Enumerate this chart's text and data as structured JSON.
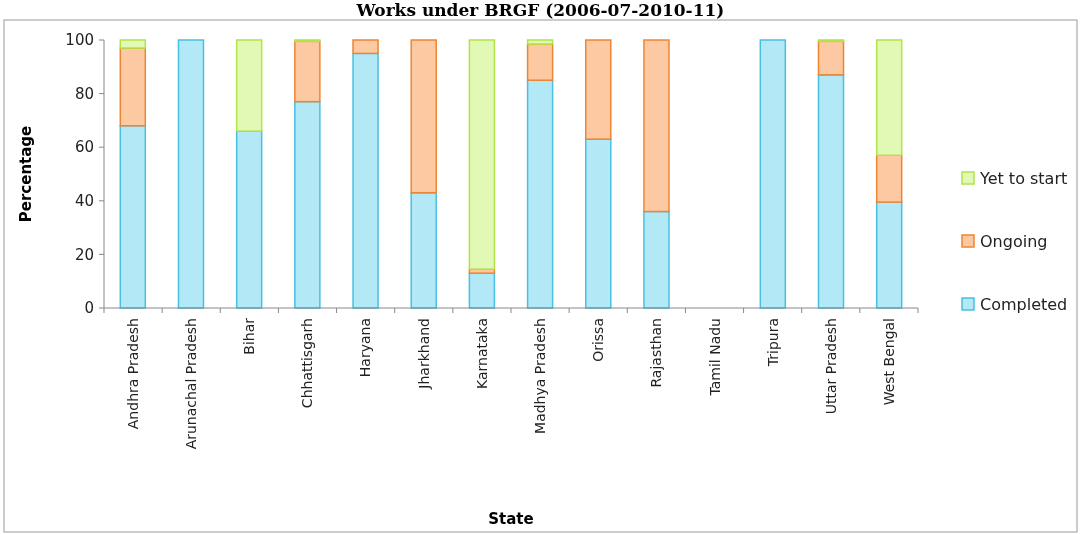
{
  "chart_data": {
    "type": "bar",
    "stacked": true,
    "title": "Works under BRGF (2006-07-2010-11)",
    "xlabel": "State",
    "ylabel": "Percentage",
    "categories": [
      "Andhra Pradesh",
      "Arunachal Pradesh",
      "Bihar",
      "Chhattisgarh",
      "Haryana",
      "Jharkhand",
      "Karnataka",
      "Madhya Pradesh",
      "Orissa",
      "Rajasthan",
      "Tamil Nadu",
      "Tripura",
      "Uttar Pradesh",
      "West Bengal"
    ],
    "series": [
      {
        "name": "Completed",
        "color": "#b3e8f7",
        "values": [
          68,
          100,
          66,
          77,
          95,
          43,
          13,
          85,
          63,
          36,
          null,
          100,
          87,
          39.5
        ]
      },
      {
        "name": "Ongoing",
        "color": "#fcc9a2",
        "values": [
          29,
          0,
          0,
          22.5,
          5,
          57,
          1.5,
          13.5,
          37,
          64,
          null,
          0,
          12.5,
          17.5
        ]
      },
      {
        "name": "Yet to start",
        "color": "#e2f8b5",
        "values": [
          3,
          0,
          34,
          0.5,
          0,
          0,
          85.5,
          1.5,
          0,
          0,
          null,
          0,
          0.5,
          43
        ]
      }
    ],
    "ylim": [
      0,
      100
    ],
    "yticks": [
      0,
      20,
      40,
      60,
      80,
      100
    ],
    "grid": false,
    "legend": "right"
  }
}
